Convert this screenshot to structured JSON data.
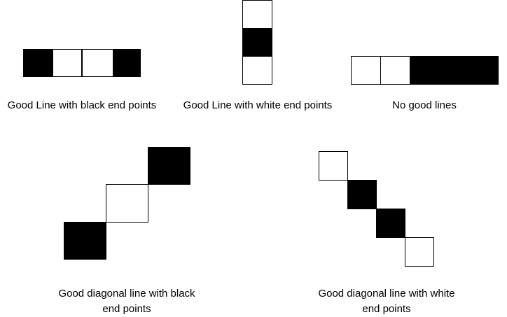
{
  "examples": [
    {
      "caption": "Good Line with black end points",
      "cells": [
        "black",
        "white",
        "white",
        "black"
      ]
    },
    {
      "caption": "Good Line with white end points",
      "cells": [
        "white",
        "black",
        "white"
      ]
    },
    {
      "caption": "No good lines",
      "cells": [
        "white",
        "white",
        "black",
        "black",
        "black"
      ]
    },
    {
      "caption_line1": "Good diagonal line with black",
      "caption_line2": "end points",
      "cells": [
        "black",
        "white",
        "black"
      ]
    },
    {
      "caption_line1": "Good diagonal line with white",
      "caption_line2": "end points",
      "cells": [
        "white",
        "black",
        "black",
        "white"
      ]
    }
  ]
}
